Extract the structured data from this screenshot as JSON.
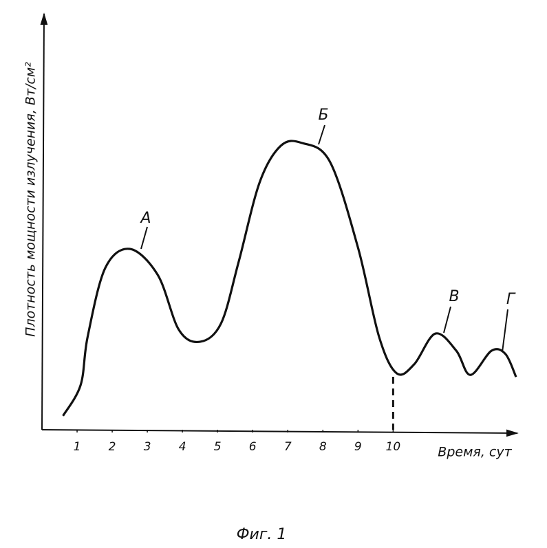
{
  "chart_data": {
    "type": "line",
    "title": "Фиг. 1",
    "x_label": "Время, сут",
    "y_label": "Плотность мощности излучения, Вт/см²",
    "xlim": [
      0,
      13.5
    ],
    "ylim": [
      0,
      100
    ],
    "xticks": [
      1,
      2,
      3,
      4,
      5,
      6,
      7,
      8,
      9,
      10
    ],
    "vlines": [
      10
    ],
    "annotations": [
      "А",
      "Б",
      "В",
      "Г"
    ],
    "series": [
      {
        "color": "#111111",
        "x": [
          0.6,
          1.1,
          1.3,
          1.8,
          2.5,
          3.3,
          3.9,
          4.5,
          5.1,
          5.6,
          6.2,
          6.8,
          7.4,
          8.2,
          9.0,
          9.6,
          10.1,
          10.6,
          11.2,
          11.8,
          12.2,
          12.8,
          13.2,
          13.5
        ],
        "values": [
          3.4,
          10.9,
          22.7,
          39.5,
          44.2,
          37.8,
          24.4,
          21.5,
          26.0,
          41.0,
          60.5,
          69.4,
          70.1,
          65.5,
          44.5,
          22.7,
          13.8,
          16.0,
          23.5,
          19.3,
          13.4,
          19.3,
          18.5,
          12.9
        ]
      }
    ]
  }
}
